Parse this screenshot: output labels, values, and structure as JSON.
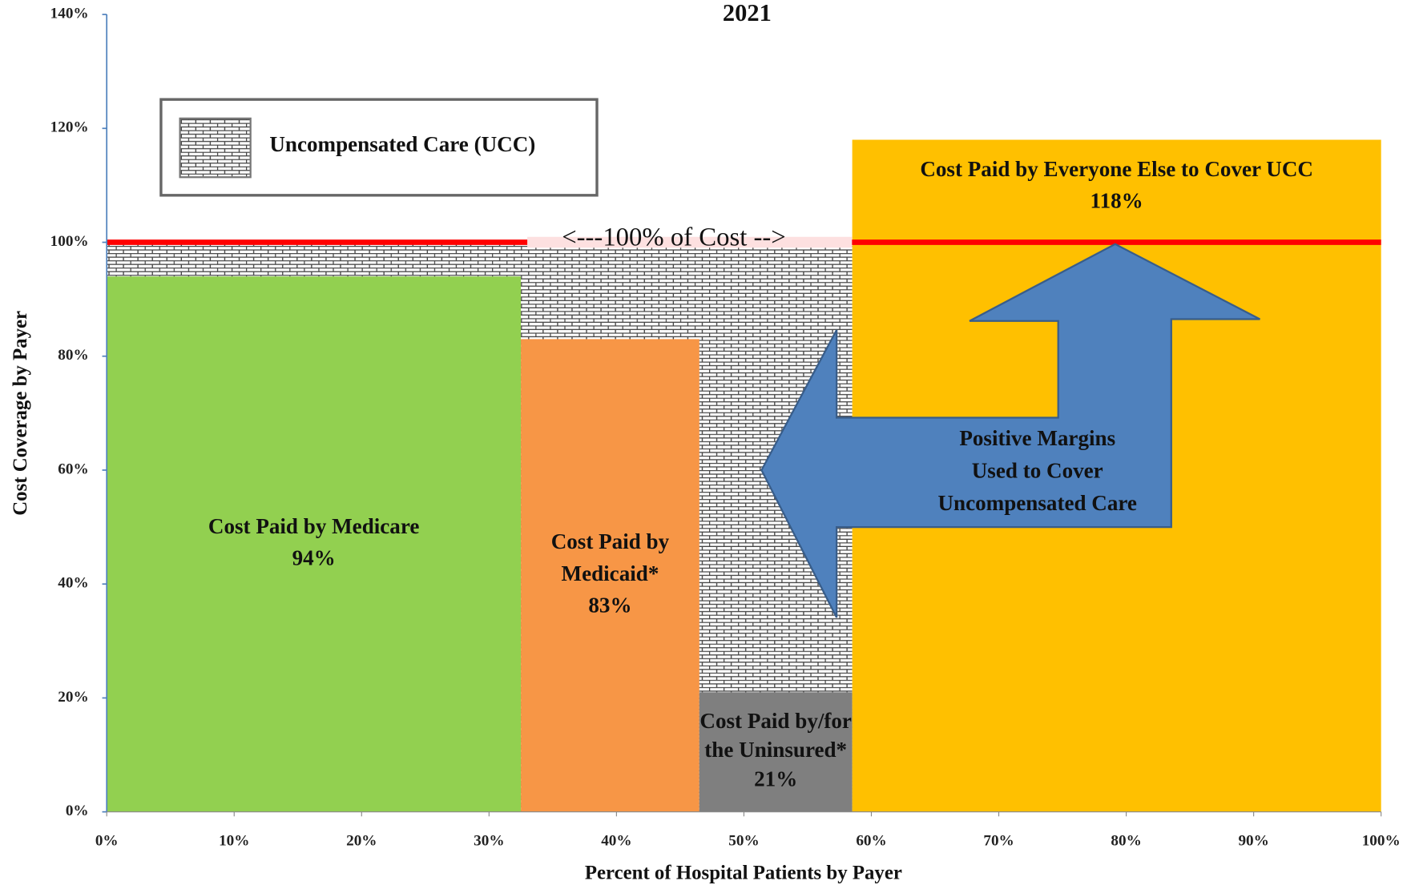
{
  "chart_data": {
    "type": "mekko",
    "title": "2021",
    "x_label": "Percent of Hospital Patients by Payer",
    "y_label": "Cost Coverage by Payer",
    "xlim": [
      0,
      100
    ],
    "ylim": [
      0,
      140
    ],
    "xticks": [
      {
        "value": 0,
        "label": "0%"
      },
      {
        "value": 10,
        "label": "10%"
      },
      {
        "value": 20,
        "label": "20%"
      },
      {
        "value": 30,
        "label": "30%"
      },
      {
        "value": 40,
        "label": "40%"
      },
      {
        "value": 50,
        "label": "50%"
      },
      {
        "value": 60,
        "label": "60%"
      },
      {
        "value": 70,
        "label": "70%"
      },
      {
        "value": 80,
        "label": "80%"
      },
      {
        "value": 90,
        "label": "90%"
      },
      {
        "value": 100,
        "label": "100%"
      }
    ],
    "yticks": [
      {
        "value": 0,
        "label": "0%"
      },
      {
        "value": 20,
        "label": "20%"
      },
      {
        "value": 40,
        "label": "40%"
      },
      {
        "value": 60,
        "label": "60%"
      },
      {
        "value": 80,
        "label": "80%"
      },
      {
        "value": 100,
        "label": "100%"
      },
      {
        "value": 120,
        "label": "120%"
      },
      {
        "value": 140,
        "label": "140%"
      }
    ],
    "bars": [
      {
        "label_lines": [
          "Cost Paid by Medicare"
        ],
        "value": 94,
        "value_label": "94%",
        "x_start": 0,
        "x_end": 32.5,
        "color": "#92d050",
        "text_color": "#111111"
      },
      {
        "label_lines": [
          "Cost Paid by",
          "Medicaid*"
        ],
        "value": 83,
        "value_label": "83%",
        "x_start": 32.5,
        "x_end": 46.5,
        "color": "#f79646",
        "text_color": "#111111"
      },
      {
        "label_lines": [
          "Cost Paid by/for",
          "the Uninsured*"
        ],
        "value": 21,
        "value_label": "21%",
        "x_start": 46.5,
        "x_end": 58.5,
        "color": "#7f7f7f",
        "text_color": "#ffffff"
      },
      {
        "label_lines": [
          "Cost Paid by Everyone Else to Cover UCC"
        ],
        "value": 118,
        "value_label": "118%",
        "x_start": 58.5,
        "x_end": 100,
        "color": "#ffc000",
        "text_color": "#111111"
      }
    ],
    "ucc": {
      "name": "Uncompensated Care (UCC)",
      "top": 100,
      "x_start": 0,
      "x_end": 58.5
    },
    "reference_line": {
      "value": 100,
      "label": "<---100% of Cost -->",
      "color": "#ff0000"
    },
    "arrow_text": [
      "Positive Margins",
      "Used to Cover",
      "Uncompensated Care"
    ]
  }
}
